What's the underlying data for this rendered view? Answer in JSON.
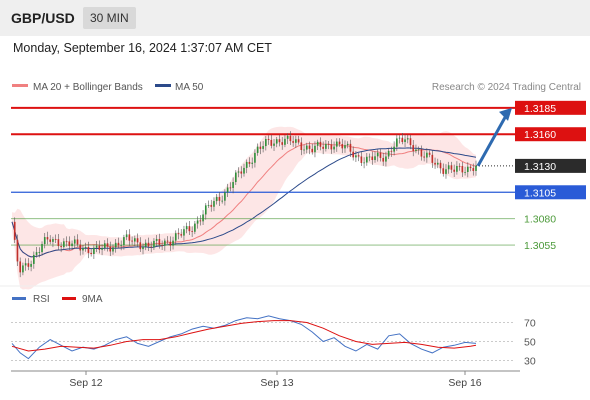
{
  "header": {
    "pair": "GBP/USD",
    "timeframe": "30 MIN",
    "timestamp": "Monday, September 16, 2024 1:37:07 AM CET"
  },
  "colors": {
    "resistance": "#dd1111",
    "support": "#2a5bd7",
    "target": "#4c9a3a",
    "ma20": "#f08080",
    "ma50": "#2c4a8a",
    "bands": "#fde2e2",
    "rsi": "#4472c4",
    "rsi_ma": "#dd1111",
    "current_price": "#2b2b2b",
    "arrow": "#2e6ab0"
  },
  "chart_data": [
    {
      "type": "candlestick",
      "legend": [
        "MA 20 + Bollinger Bands",
        "MA 50"
      ],
      "source": "Research © 2024 Trading Central",
      "y_range": [
        1.302,
        1.32
      ],
      "x_ticks": [
        "Sep 12",
        "Sep 13",
        "Sep 16"
      ],
      "current_price": 1.313,
      "levels": [
        {
          "value": 1.3185,
          "label": "1.3185",
          "kind": "resistance"
        },
        {
          "value": 1.316,
          "label": "1.3160",
          "kind": "resistance"
        },
        {
          "value": 1.313,
          "label": "1.3130",
          "kind": "current"
        },
        {
          "value": 1.3105,
          "label": "1.3105",
          "kind": "support"
        },
        {
          "value": 1.308,
          "label": "1.3080",
          "kind": "target"
        },
        {
          "value": 1.3055,
          "label": "1.3055",
          "kind": "target"
        }
      ],
      "arrow": {
        "from": 1.313,
        "to": 1.3185
      },
      "path_points": [
        [
          0,
          1.3077
        ],
        [
          1,
          1.3055
        ],
        [
          2,
          1.3038
        ],
        [
          3,
          1.303
        ],
        [
          5,
          1.3035
        ],
        [
          8,
          1.3045
        ],
        [
          11,
          1.3055
        ],
        [
          14,
          1.306
        ],
        [
          18,
          1.3058
        ],
        [
          22,
          1.3055
        ],
        [
          26,
          1.3053
        ],
        [
          30,
          1.305
        ],
        [
          34,
          1.3052
        ],
        [
          38,
          1.3056
        ],
        [
          42,
          1.306
        ],
        [
          46,
          1.3058
        ],
        [
          50,
          1.3054
        ],
        [
          54,
          1.3056
        ],
        [
          58,
          1.306
        ],
        [
          62,
          1.3065
        ],
        [
          66,
          1.3072
        ],
        [
          70,
          1.3085
        ],
        [
          74,
          1.3095
        ],
        [
          78,
          1.3105
        ],
        [
          82,
          1.3118
        ],
        [
          86,
          1.3132
        ],
        [
          90,
          1.3145
        ],
        [
          94,
          1.3152
        ],
        [
          98,
          1.3155
        ],
        [
          102,
          1.3153
        ],
        [
          106,
          1.315
        ],
        [
          110,
          1.3146
        ],
        [
          114,
          1.3148
        ],
        [
          118,
          1.3152
        ],
        [
          122,
          1.3147
        ],
        [
          126,
          1.314
        ],
        [
          130,
          1.3135
        ],
        [
          134,
          1.3138
        ],
        [
          137,
          1.314
        ],
        [
          140,
          1.315
        ],
        [
          144,
          1.3155
        ],
        [
          147,
          1.315
        ],
        [
          150,
          1.314
        ],
        [
          154,
          1.3135
        ],
        [
          158,
          1.3128
        ],
        [
          162,
          1.3125
        ],
        [
          166,
          1.3128
        ],
        [
          170,
          1.313
        ]
      ]
    },
    {
      "type": "line",
      "legend": [
        "RSI",
        "9MA"
      ],
      "y_range": [
        20,
        80
      ],
      "y_ticks": [
        70,
        50,
        30
      ],
      "rsi": [
        [
          0,
          48
        ],
        [
          3,
          38
        ],
        [
          6,
          32
        ],
        [
          10,
          44
        ],
        [
          14,
          52
        ],
        [
          18,
          46
        ],
        [
          22,
          40
        ],
        [
          26,
          44
        ],
        [
          30,
          42
        ],
        [
          34,
          46
        ],
        [
          38,
          52
        ],
        [
          42,
          55
        ],
        [
          46,
          48
        ],
        [
          50,
          45
        ],
        [
          54,
          50
        ],
        [
          58,
          55
        ],
        [
          62,
          58
        ],
        [
          66,
          63
        ],
        [
          70,
          66
        ],
        [
          74,
          64
        ],
        [
          78,
          67
        ],
        [
          82,
          72
        ],
        [
          86,
          75
        ],
        [
          90,
          74
        ],
        [
          94,
          77
        ],
        [
          98,
          74
        ],
        [
          102,
          72
        ],
        [
          106,
          68
        ],
        [
          110,
          60
        ],
        [
          114,
          50
        ],
        [
          118,
          54
        ],
        [
          122,
          45
        ],
        [
          126,
          40
        ],
        [
          130,
          47
        ],
        [
          134,
          42
        ],
        [
          138,
          56
        ],
        [
          142,
          58
        ],
        [
          146,
          48
        ],
        [
          150,
          42
        ],
        [
          154,
          38
        ],
        [
          158,
          44
        ],
        [
          162,
          46
        ],
        [
          166,
          49
        ],
        [
          170,
          48
        ]
      ],
      "rsi_ma": [
        [
          0,
          45
        ],
        [
          6,
          40
        ],
        [
          12,
          42
        ],
        [
          18,
          45
        ],
        [
          24,
          44
        ],
        [
          30,
          43
        ],
        [
          36,
          46
        ],
        [
          42,
          50
        ],
        [
          48,
          52
        ],
        [
          54,
          52
        ],
        [
          60,
          55
        ],
        [
          66,
          59
        ],
        [
          72,
          63
        ],
        [
          78,
          66
        ],
        [
          84,
          69
        ],
        [
          90,
          71
        ],
        [
          96,
          72
        ],
        [
          102,
          72
        ],
        [
          108,
          70
        ],
        [
          114,
          64
        ],
        [
          120,
          56
        ],
        [
          126,
          50
        ],
        [
          132,
          47
        ],
        [
          138,
          48
        ],
        [
          144,
          49
        ],
        [
          150,
          47
        ],
        [
          156,
          44
        ],
        [
          162,
          43
        ],
        [
          168,
          45
        ],
        [
          170,
          46
        ]
      ]
    }
  ]
}
